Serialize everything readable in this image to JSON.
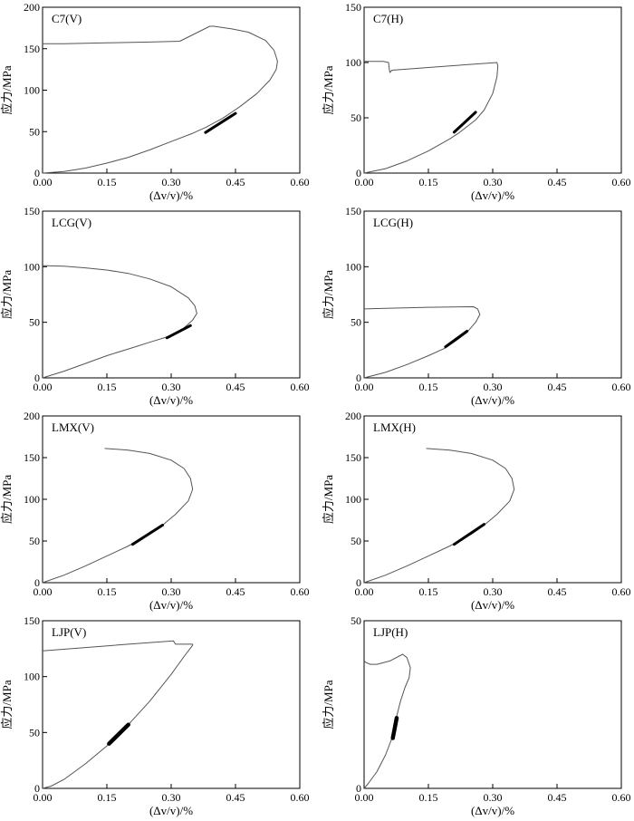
{
  "figure": {
    "background": "#ffffff",
    "curve_color": "#555555",
    "highlight_color": "#000000"
  },
  "chart_data": [
    {
      "type": "line",
      "title": "C7(V)",
      "xlabel": "(Δv/v)/%",
      "ylabel": "应力/MPa",
      "xlim": [
        0,
        0.6
      ],
      "ylim": [
        0,
        200
      ],
      "xticks": [
        "0.00",
        "0.15",
        "0.30",
        "0.45",
        "0.60"
      ],
      "yticks": [
        "0",
        "50",
        "100",
        "150",
        "200"
      ],
      "series": [
        {
          "points": [
            [
              0,
              0
            ],
            [
              0.05,
              2
            ],
            [
              0.1,
              6
            ],
            [
              0.15,
              12
            ],
            [
              0.2,
              19
            ],
            [
              0.25,
              28
            ],
            [
              0.3,
              38
            ],
            [
              0.35,
              48
            ],
            [
              0.38,
              55
            ],
            [
              0.42,
              66
            ],
            [
              0.46,
              80
            ],
            [
              0.5,
              96
            ],
            [
              0.53,
              112
            ],
            [
              0.545,
              125
            ],
            [
              0.548,
              135
            ],
            [
              0.54,
              148
            ],
            [
              0.52,
              160
            ],
            [
              0.48,
              170
            ],
            [
              0.44,
              174
            ],
            [
              0.4,
              177
            ],
            [
              0.39,
              177
            ],
            [
              0.32,
              159
            ],
            [
              0.25,
              158
            ],
            [
              0.15,
              157
            ],
            [
              0.05,
              156
            ],
            [
              0,
              156
            ]
          ]
        },
        {
          "highlight": true,
          "points": [
            [
              0.38,
              49
            ],
            [
              0.45,
              72
            ]
          ]
        }
      ]
    },
    {
      "type": "line",
      "title": "C7(H)",
      "xlabel": "(Δv/v)/%",
      "ylabel": "应力/MPa",
      "xlim": [
        0,
        0.6
      ],
      "ylim": [
        0,
        150
      ],
      "xticks": [
        "0.00",
        "0.15",
        "0.30",
        "0.45",
        "0.60"
      ],
      "yticks": [
        "0",
        "50",
        "100",
        "150"
      ],
      "series": [
        {
          "points": [
            [
              0,
              0
            ],
            [
              0.05,
              4
            ],
            [
              0.1,
              11
            ],
            [
              0.15,
              20
            ],
            [
              0.2,
              31
            ],
            [
              0.22,
              36
            ],
            [
              0.26,
              48
            ],
            [
              0.28,
              57
            ],
            [
              0.3,
              72
            ],
            [
              0.31,
              87
            ],
            [
              0.312,
              97
            ],
            [
              0.31,
              100
            ],
            [
              0.2,
              97
            ],
            [
              0.1,
              94
            ],
            [
              0.065,
              93
            ],
            [
              0.06,
              91
            ],
            [
              0.058,
              96
            ],
            [
              0.057,
              100
            ],
            [
              0.045,
              101
            ],
            [
              0.02,
              101
            ],
            [
              0,
              101
            ]
          ]
        },
        {
          "highlight": true,
          "points": [
            [
              0.21,
              37
            ],
            [
              0.26,
              55
            ]
          ]
        }
      ]
    },
    {
      "type": "line",
      "title": "LCG(V)",
      "xlabel": "(Δv/v)/%",
      "ylabel": "应力/MPa",
      "xlim": [
        0,
        0.6
      ],
      "ylim": [
        0,
        150
      ],
      "xticks": [
        "0.00",
        "0.15",
        "0.30",
        "0.45",
        "0.60"
      ],
      "yticks": [
        "0",
        "50",
        "100",
        "150"
      ],
      "series": [
        {
          "points": [
            [
              0,
              0
            ],
            [
              0.05,
              6
            ],
            [
              0.1,
              13
            ],
            [
              0.15,
              20
            ],
            [
              0.2,
              26
            ],
            [
              0.25,
              32
            ],
            [
              0.3,
              38
            ],
            [
              0.33,
              45
            ],
            [
              0.35,
              52
            ],
            [
              0.36,
              58
            ],
            [
              0.355,
              65
            ],
            [
              0.34,
              72
            ],
            [
              0.3,
              82
            ],
            [
              0.25,
              89
            ],
            [
              0.2,
              94
            ],
            [
              0.15,
              97
            ],
            [
              0.1,
              99
            ],
            [
              0.05,
              100.5
            ],
            [
              0,
              101
            ]
          ]
        },
        {
          "highlight": true,
          "points": [
            [
              0.29,
              36
            ],
            [
              0.345,
              47
            ]
          ]
        }
      ]
    },
    {
      "type": "line",
      "title": "LCG(H)",
      "xlabel": "(Δv/v)/%",
      "ylabel": "应力/MPa",
      "xlim": [
        0,
        0.6
      ],
      "ylim": [
        0,
        150
      ],
      "xticks": [
        "0.00",
        "0.15",
        "0.30",
        "0.45",
        "0.60"
      ],
      "yticks": [
        "0",
        "50",
        "100",
        "150"
      ],
      "series": [
        {
          "points": [
            [
              0,
              0
            ],
            [
              0.05,
              5
            ],
            [
              0.1,
              12
            ],
            [
              0.15,
              20
            ],
            [
              0.19,
              27
            ],
            [
              0.22,
              35
            ],
            [
              0.24,
              41
            ],
            [
              0.26,
              50
            ],
            [
              0.27,
              57
            ],
            [
              0.265,
              62
            ],
            [
              0.255,
              64
            ],
            [
              0.15,
              63.5
            ],
            [
              0.05,
              62.5
            ],
            [
              0,
              62
            ]
          ]
        },
        {
          "highlight": true,
          "points": [
            [
              0.19,
              28
            ],
            [
              0.24,
              42
            ]
          ]
        }
      ]
    },
    {
      "type": "line",
      "title": "LMX(V)",
      "xlabel": "(Δv/v)/%",
      "ylabel": "应力/MPa",
      "xlim": [
        0,
        0.6
      ],
      "ylim": [
        0,
        200
      ],
      "xticks": [
        "0.00",
        "0.15",
        "0.30",
        "0.45",
        "0.60"
      ],
      "yticks": [
        "0",
        "50",
        "100",
        "150",
        "200"
      ],
      "series": [
        {
          "points": [
            [
              0,
              0
            ],
            [
              0.05,
              9
            ],
            [
              0.1,
              20
            ],
            [
              0.15,
              32
            ],
            [
              0.2,
              44
            ],
            [
              0.25,
              58
            ],
            [
              0.28,
              69
            ],
            [
              0.31,
              82
            ],
            [
              0.34,
              98
            ],
            [
              0.35,
              112
            ],
            [
              0.345,
              125
            ],
            [
              0.33,
              137
            ],
            [
              0.3,
              147
            ],
            [
              0.25,
              155
            ],
            [
              0.2,
              159
            ],
            [
              0.145,
              161
            ]
          ]
        },
        {
          "highlight": true,
          "points": [
            [
              0.21,
              46
            ],
            [
              0.28,
              69
            ]
          ]
        }
      ]
    },
    {
      "type": "line",
      "title": "LMX(H)",
      "xlabel": "(Δv/v)/%",
      "ylabel": "应力/MPa",
      "xlim": [
        0,
        0.6
      ],
      "ylim": [
        0,
        200
      ],
      "xticks": [
        "0.00",
        "0.15",
        "0.30",
        "0.45",
        "0.60"
      ],
      "yticks": [
        "0",
        "50",
        "100",
        "150",
        "200"
      ],
      "series": [
        {
          "points": [
            [
              0,
              0
            ],
            [
              0.05,
              9
            ],
            [
              0.1,
              20
            ],
            [
              0.15,
              32
            ],
            [
              0.2,
              44
            ],
            [
              0.25,
              58
            ],
            [
              0.28,
              69
            ],
            [
              0.31,
              82
            ],
            [
              0.34,
              98
            ],
            [
              0.35,
              112
            ],
            [
              0.345,
              125
            ],
            [
              0.33,
              137
            ],
            [
              0.3,
              147
            ],
            [
              0.25,
              155
            ],
            [
              0.2,
              159
            ],
            [
              0.145,
              161
            ]
          ]
        },
        {
          "highlight": true,
          "points": [
            [
              0.21,
              46
            ],
            [
              0.28,
              70
            ]
          ]
        }
      ]
    },
    {
      "type": "line",
      "title": "LJP(V)",
      "xlabel": "(Δv/v)/%",
      "ylabel": "应力/MPa",
      "xlim": [
        0,
        0.6
      ],
      "ylim": [
        0,
        150
      ],
      "xticks": [
        "0.00",
        "0.15",
        "0.30",
        "0.45",
        "0.60"
      ],
      "yticks": [
        "0",
        "50",
        "100",
        "150"
      ],
      "series": [
        {
          "points": [
            [
              0,
              0
            ],
            [
              0.02,
              2
            ],
            [
              0.05,
              8
            ],
            [
              0.1,
              22
            ],
            [
              0.15,
              38
            ],
            [
              0.2,
              57
            ],
            [
              0.25,
              78
            ],
            [
              0.3,
              102
            ],
            [
              0.33,
              118
            ],
            [
              0.35,
              128
            ],
            [
              0.35,
              129
            ],
            [
              0.31,
              129
            ],
            [
              0.305,
              132
            ],
            [
              0.2,
              129
            ],
            [
              0.1,
              126
            ],
            [
              0,
              123
            ]
          ]
        },
        {
          "highlight": true,
          "points": [
            [
              0.155,
              40
            ],
            [
              0.2,
              57
            ]
          ]
        }
      ]
    },
    {
      "type": "line",
      "title": "LJP(H)",
      "xlabel": "(Δv/v)/%",
      "ylabel": "应力/MPa",
      "xlim": [
        0,
        0.6
      ],
      "ylim": [
        0,
        50
      ],
      "xticks": [
        "0.00",
        "0.15",
        "0.30",
        "0.45",
        "0.60"
      ],
      "yticks": [
        "0",
        "50"
      ],
      "series": [
        {
          "points": [
            [
              0,
              0
            ],
            [
              0.01,
              1.5
            ],
            [
              0.03,
              5
            ],
            [
              0.05,
              10
            ],
            [
              0.065,
              15
            ],
            [
              0.075,
              21
            ],
            [
              0.085,
              26
            ],
            [
              0.095,
              30
            ],
            [
              0.105,
              33
            ],
            [
              0.108,
              36
            ],
            [
              0.1,
              39
            ],
            [
              0.09,
              40
            ],
            [
              0.06,
              38
            ],
            [
              0.03,
              37
            ],
            [
              0.015,
              37
            ],
            [
              0.005,
              37.5
            ],
            [
              0,
              38
            ]
          ]
        },
        {
          "highlight": true,
          "points": [
            [
              0.067,
              15
            ],
            [
              0.076,
              21
            ]
          ]
        }
      ]
    }
  ]
}
